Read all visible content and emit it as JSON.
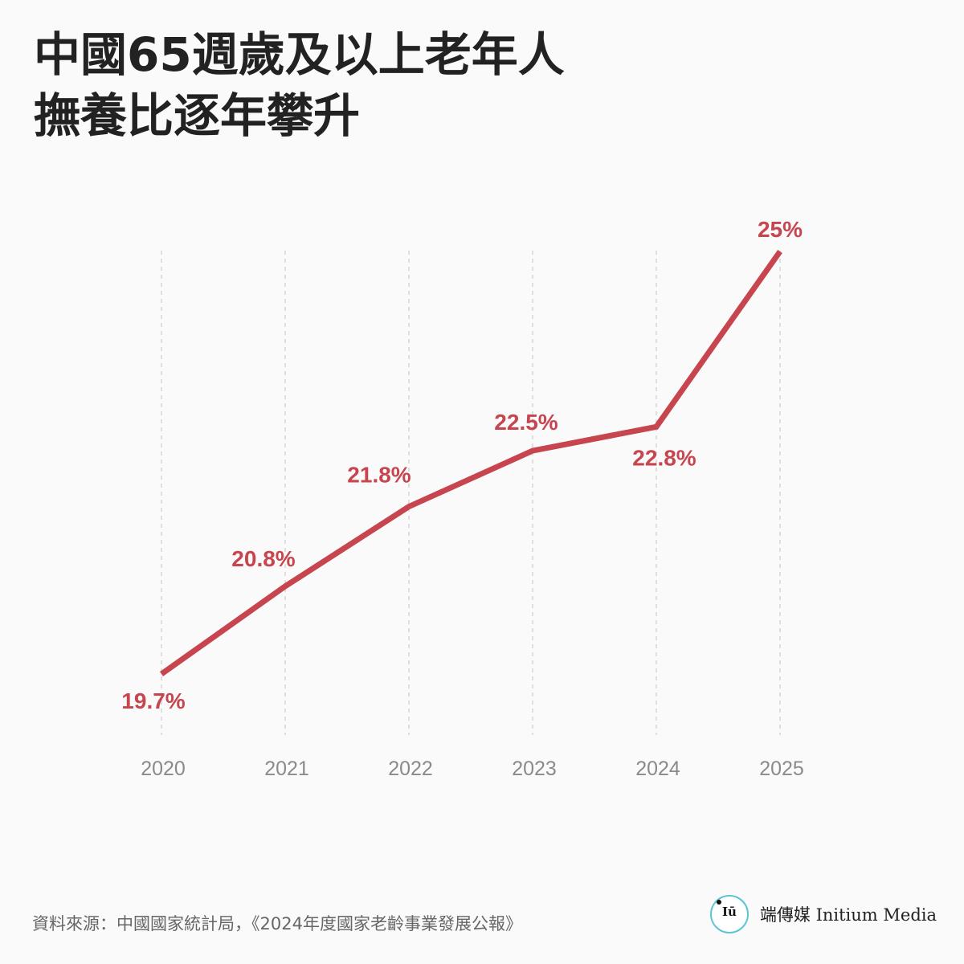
{
  "title": {
    "line1": "中國65週歲及以上老年人",
    "line2": "撫養比逐年攀升"
  },
  "chart_data": {
    "type": "line",
    "title": "中國65週歲及以上老年人撫養比逐年攀升",
    "categories": [
      "2020",
      "2021",
      "2022",
      "2023",
      "2024",
      "2025"
    ],
    "values": [
      19.7,
      20.8,
      21.8,
      22.5,
      22.8,
      25
    ],
    "data_labels": [
      "19.7%",
      "20.8%",
      "21.8%",
      "22.5%",
      "22.8%",
      "25%"
    ],
    "line_color": "#c7454e",
    "label_color": "#c7454e",
    "xlabel": "",
    "ylabel": "",
    "grid": "vertical-dashed"
  },
  "footer": {
    "source": "資料來源：中國國家統計局，《2024年度國家老齡事業發展公報》",
    "brand_name": "端傳媒 Initium Media",
    "logo_icon": "initium-logo-icon",
    "logo_glyph": "Iū"
  }
}
